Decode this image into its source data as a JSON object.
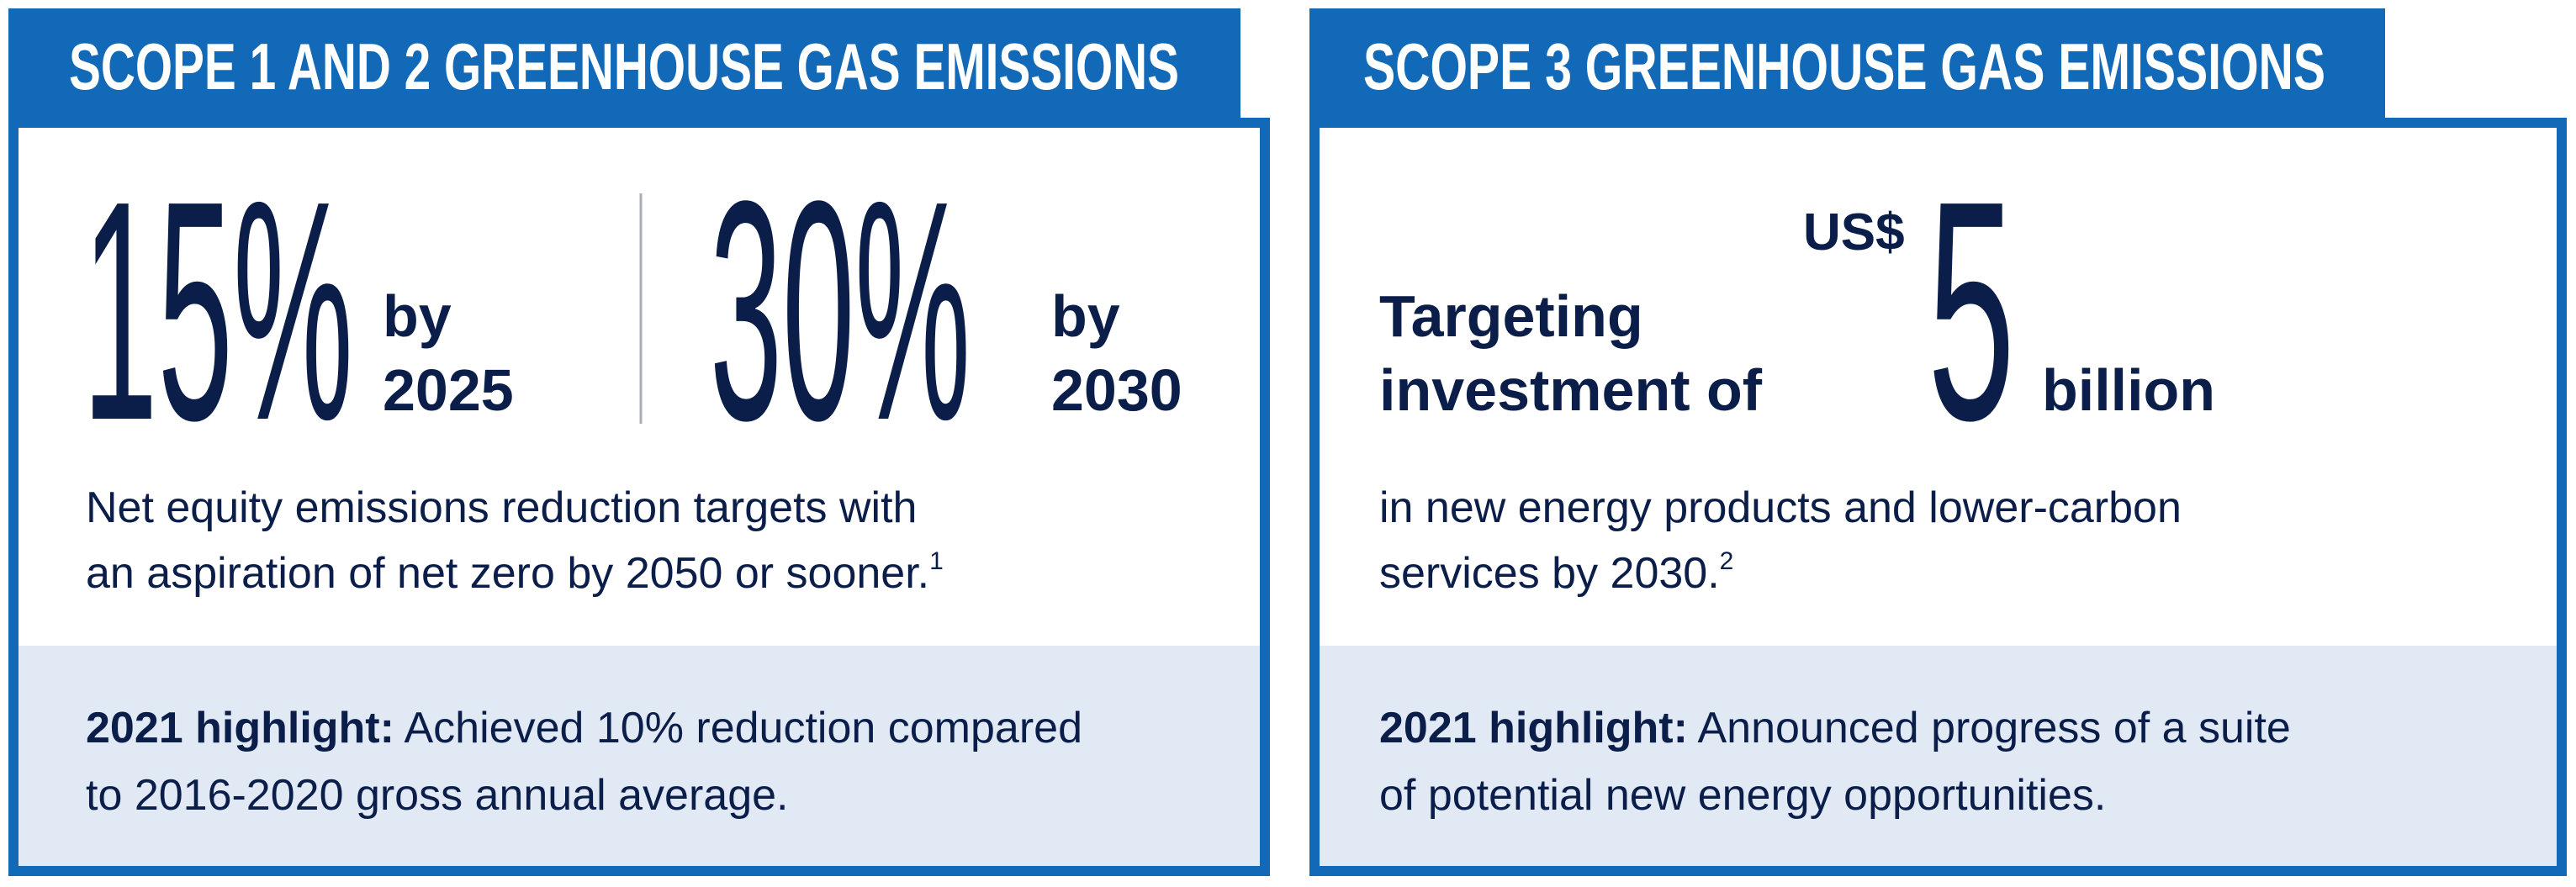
{
  "panels": [
    {
      "title": "SCOPE 1 AND 2 GREENHOUSE GAS EMISSIONS",
      "targets": [
        {
          "value": "15%",
          "label": [
            "by",
            "2025"
          ]
        },
        {
          "value": "30%",
          "label": [
            "by",
            "2030"
          ]
        }
      ],
      "description": [
        "Net equity emissions reduction targets with",
        "an aspiration of net zero by 2050 or sooner."
      ],
      "footnote": "1",
      "highlight": {
        "label": "2021 highlight:",
        "lines": [
          "Achieved 10% reduction compared",
          "to 2016-2020 gross annual average."
        ]
      }
    },
    {
      "title": "SCOPE 3 GREENHOUSE GAS EMISSIONS",
      "lead": [
        "Targeting",
        "investment of"
      ],
      "currency": "US$",
      "amount": "5",
      "unit": "billion",
      "description": [
        "in new energy products and lower-carbon",
        "services by 2030."
      ],
      "footnote": "2",
      "highlight": {
        "label": "2021 highlight:",
        "lines": [
          "Announced progress of a suite",
          "of potential new energy opportunities."
        ]
      }
    }
  ]
}
